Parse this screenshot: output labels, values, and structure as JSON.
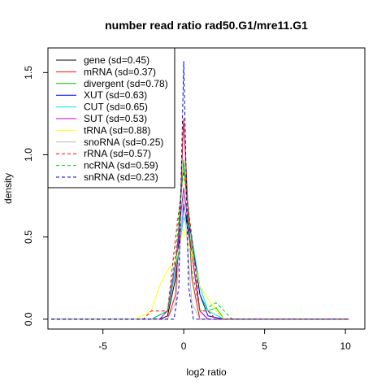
{
  "chart_data": {
    "type": "line",
    "title": "number read ratio rad50.G1/mre11.G1",
    "xlabel": "log2 ratio",
    "ylabel": "density",
    "xlim": [
      -8.4,
      11.2
    ],
    "ylim": [
      -0.06,
      1.65
    ],
    "x_ticks": [
      -5,
      0,
      5,
      10
    ],
    "y_ticks": [
      0.0,
      0.5,
      1.0,
      1.5
    ],
    "x_tick_labels": [
      "-5",
      "0",
      "5",
      "10"
    ],
    "y_tick_labels": [
      "0.0",
      "0.5",
      "1.0",
      "1.5"
    ],
    "grid": false,
    "legend_position": "top-left",
    "series": [
      {
        "name": "gene (sd=0.45)",
        "color": "#000000",
        "dash": false,
        "x": [
          -8.2,
          -1.5,
          -1.0,
          -0.5,
          0.0,
          0.5,
          1.0,
          1.5,
          10.2
        ],
        "y": [
          0,
          0,
          0.02,
          0.25,
          0.7,
          0.4,
          0.05,
          0,
          0
        ]
      },
      {
        "name": "mRNA (sd=0.37)",
        "color": "#ff0000",
        "dash": false,
        "x": [
          -8.2,
          -1.0,
          -0.5,
          -0.25,
          0.0,
          0.25,
          0.5,
          1.0,
          10.2
        ],
        "y": [
          0,
          0,
          0.15,
          0.6,
          1.22,
          0.7,
          0.25,
          0,
          0
        ]
      },
      {
        "name": "divergent (sd=0.78)",
        "color": "#00cd00",
        "dash": false,
        "x": [
          -8.2,
          -2.0,
          -1.0,
          -0.5,
          0.0,
          0.5,
          1.0,
          1.5,
          2.0,
          2.5,
          10.2
        ],
        "y": [
          0,
          0,
          0.05,
          0.3,
          0.97,
          0.45,
          0.15,
          0.05,
          0.07,
          0,
          0
        ]
      },
      {
        "name": "XUT (sd=0.63)",
        "color": "#0000ff",
        "dash": false,
        "x": [
          -8.2,
          -2.0,
          -1.0,
          -0.5,
          0.0,
          0.5,
          1.0,
          1.5,
          2.5,
          10.2
        ],
        "y": [
          0,
          0,
          0.05,
          0.3,
          0.68,
          0.5,
          0.15,
          0.02,
          0,
          0
        ]
      },
      {
        "name": "CUT (sd=0.65)",
        "color": "#00e5e5",
        "dash": false,
        "x": [
          -8.2,
          -2.0,
          -1.0,
          -0.5,
          0.0,
          0.5,
          1.0,
          1.5,
          2.5,
          10.2
        ],
        "y": [
          0,
          0,
          0.05,
          0.3,
          0.62,
          0.5,
          0.2,
          0.05,
          0,
          0
        ]
      },
      {
        "name": "SUT (sd=0.53)",
        "color": "#cd00cd",
        "dash": false,
        "x": [
          -8.2,
          -1.5,
          -1.0,
          -0.5,
          0.0,
          0.5,
          1.0,
          1.5,
          10.2
        ],
        "y": [
          0,
          0,
          0.05,
          0.35,
          0.8,
          0.4,
          0.05,
          0,
          0
        ]
      },
      {
        "name": "tRNA (sd=0.88)",
        "color": "#ffff00",
        "dash": false,
        "x": [
          -8.2,
          -3.0,
          -2.0,
          -1.5,
          -1.0,
          -0.5,
          0.0,
          0.5,
          1.0,
          2.0,
          2.5,
          10.2
        ],
        "y": [
          0,
          0,
          0.05,
          0.2,
          0.3,
          0.35,
          0.55,
          0.4,
          0.2,
          0.05,
          0,
          0
        ]
      },
      {
        "name": "snoRNA (sd=0.25)",
        "color": "#bebebe",
        "dash": false,
        "x": [
          -8.2,
          -1.0,
          -0.5,
          0.0,
          0.5,
          1.0,
          10.2
        ],
        "y": [
          0,
          0,
          0.1,
          0.75,
          0.1,
          0,
          0
        ]
      },
      {
        "name": "rRNA (sd=0.57)",
        "color": "#ff0000",
        "dash": true,
        "x": [
          -8.2,
          -2.5,
          -2.0,
          -1.5,
          -1.0,
          -0.5,
          0.0,
          0.5,
          1.0,
          1.5,
          2.0,
          10.2
        ],
        "y": [
          0,
          0,
          0.05,
          0.05,
          0.05,
          0.5,
          0.9,
          0.5,
          0.05,
          0.05,
          0,
          0
        ]
      },
      {
        "name": "ncRNA (sd=0.59)",
        "color": "#00cd00",
        "dash": true,
        "x": [
          -8.2,
          -2.0,
          -1.0,
          -0.5,
          0.0,
          0.5,
          1.0,
          1.5,
          2.0,
          2.5,
          3.0,
          10.2
        ],
        "y": [
          0,
          0,
          0.05,
          0.4,
          0.95,
          0.3,
          0.05,
          0.07,
          0.1,
          0.05,
          0,
          0
        ]
      },
      {
        "name": "snRNA (sd=0.23)",
        "color": "#0000cd",
        "dash": true,
        "x": [
          -8.2,
          -0.6,
          -0.3,
          0.0,
          0.3,
          0.6,
          10.2
        ],
        "y": [
          0,
          0,
          0.2,
          1.57,
          0.2,
          0,
          0
        ]
      }
    ]
  }
}
